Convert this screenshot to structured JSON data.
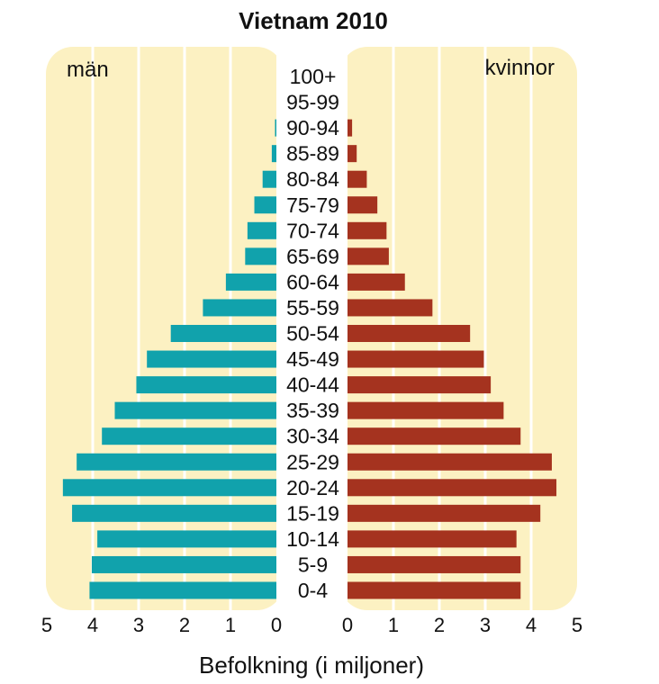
{
  "chart_data": {
    "type": "bar",
    "title": "Vietnam 2010",
    "xlabel": "Befolkning (i miljoner)",
    "left_label": "män",
    "right_label": "kvinnor",
    "categories": [
      "100+",
      "95-99",
      "90-94",
      "85-89",
      "80-84",
      "75-79",
      "70-74",
      "65-69",
      "60-64",
      "55-59",
      "50-54",
      "45-49",
      "40-44",
      "35-39",
      "30-34",
      "25-29",
      "20-24",
      "15-19",
      "10-14",
      "5-9",
      "0-4"
    ],
    "series": [
      {
        "name": "män",
        "values": [
          0,
          0,
          0.03,
          0.1,
          0.3,
          0.48,
          0.63,
          0.68,
          1.1,
          1.6,
          2.3,
          2.82,
          3.05,
          3.52,
          3.8,
          4.35,
          4.65,
          4.45,
          3.9,
          4.02,
          4.07
        ]
      },
      {
        "name": "kvinnor",
        "values": [
          0,
          0,
          0.1,
          0.2,
          0.42,
          0.65,
          0.85,
          0.9,
          1.25,
          1.85,
          2.67,
          2.97,
          3.12,
          3.4,
          3.77,
          4.45,
          4.55,
          4.2,
          3.68,
          3.77,
          3.77
        ]
      }
    ],
    "xlim": [
      0,
      5
    ],
    "ticks": [
      0,
      1,
      2,
      3,
      4,
      5
    ],
    "colors": {
      "men": "#11a2ac",
      "women": "#a5331f",
      "background": "#fcf1c2",
      "grid": "#ffffff"
    },
    "grid": true
  }
}
